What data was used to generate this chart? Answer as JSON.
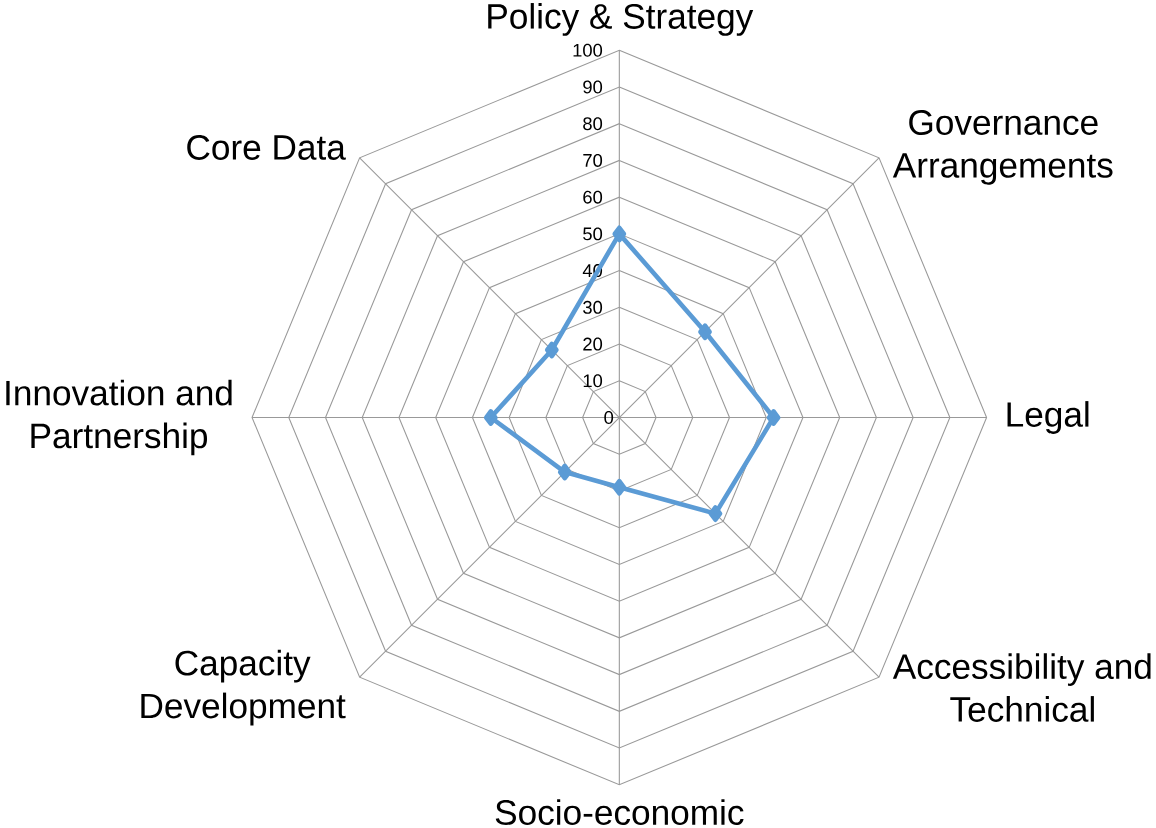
{
  "chart_data": {
    "type": "radar",
    "categories": [
      "Policy & Strategy",
      "Governance Arrangements",
      "Legal",
      "Accessibility and Technical",
      "Socio-economic",
      "Capacity Development",
      "Innovation and Partnership",
      "Core Data"
    ],
    "series": [
      {
        "color": "#5b9bd5",
        "values": [
          50,
          33,
          42,
          37,
          19,
          21,
          35,
          26
        ]
      }
    ],
    "ylim": [
      0,
      100
    ],
    "yticks": [
      0,
      10,
      20,
      30,
      40,
      50,
      60,
      70,
      80,
      90,
      100
    ],
    "grid": true,
    "marker": "diamond"
  }
}
